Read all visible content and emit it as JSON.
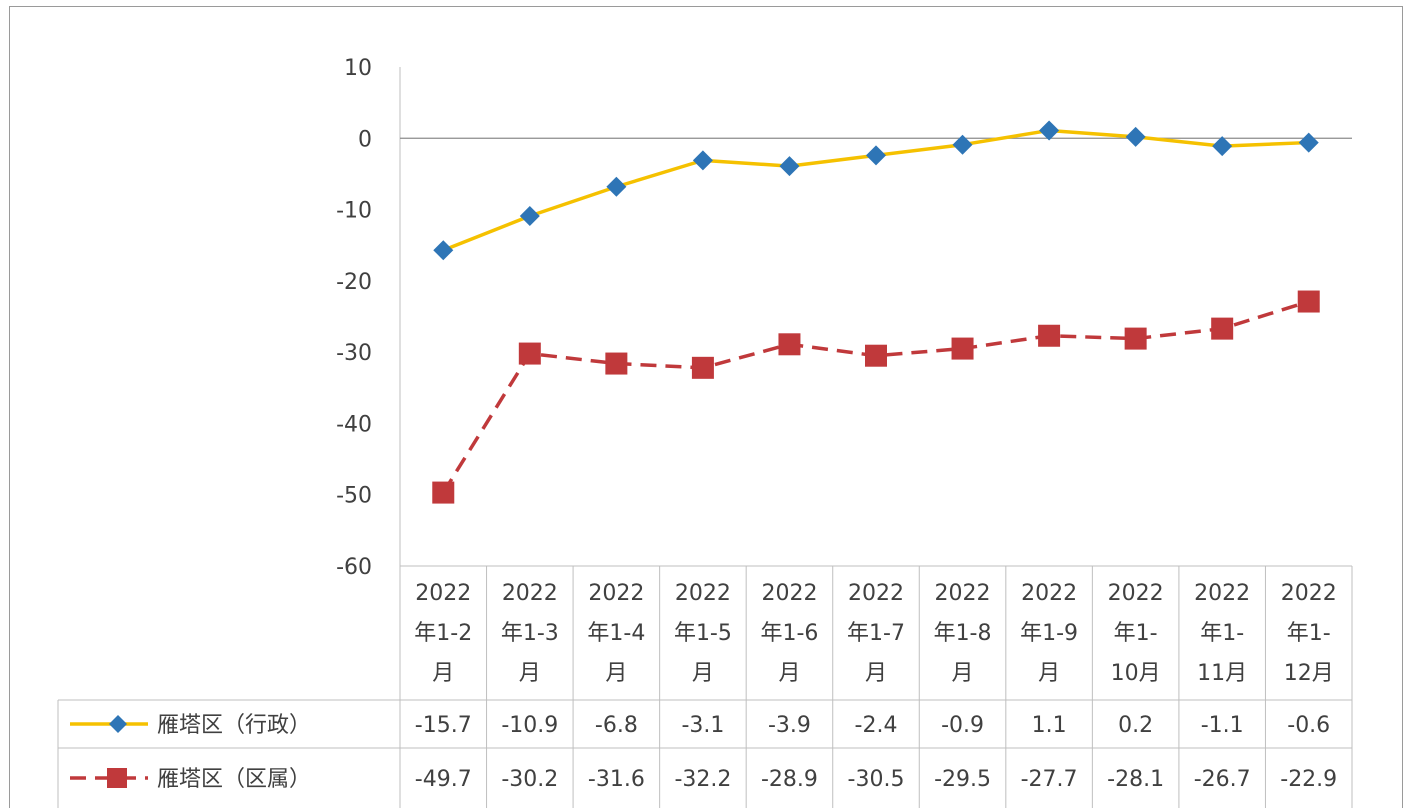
{
  "chart_data": {
    "type": "line",
    "title": "",
    "xlabel": "",
    "ylabel": "",
    "ylim": [
      -60,
      10
    ],
    "yticks": [
      "10",
      "0",
      "-10",
      "-20",
      "-30",
      "-40",
      "-50",
      "-60"
    ],
    "categories": [
      [
        "2022",
        "年1-2",
        "月"
      ],
      [
        "2022",
        "年1-3",
        "月"
      ],
      [
        "2022",
        "年1-4",
        "月"
      ],
      [
        "2022",
        "年1-5",
        "月"
      ],
      [
        "2022",
        "年1-6",
        "月"
      ],
      [
        "2022",
        "年1-7",
        "月"
      ],
      [
        "2022",
        "年1-8",
        "月"
      ],
      [
        "2022",
        "年1-9",
        "月"
      ],
      [
        "2022",
        "年1-",
        "10月"
      ],
      [
        "2022",
        "年1-",
        "11月"
      ],
      [
        "2022",
        "年1-",
        "12月"
      ]
    ],
    "series": [
      {
        "name": "雁塔区（行政）",
        "color": "#f5c100",
        "marker_color": "#2e75b6",
        "marker": "diamond",
        "line_style": "solid",
        "values": [
          -15.7,
          -10.9,
          -6.8,
          -3.1,
          -3.9,
          -2.4,
          -0.9,
          1.1,
          0.2,
          -1.1,
          -0.6
        ],
        "labels": [
          "-15.7",
          "-10.9",
          "-6.8",
          "-3.1",
          "-3.9",
          "-2.4",
          "-0.9",
          "1.1",
          "0.2",
          "-1.1",
          "-0.6"
        ]
      },
      {
        "name": "雁塔区（区属）",
        "color": "#c0393b",
        "marker_color": "#c0393b",
        "marker": "square",
        "line_style": "dashed",
        "values": [
          -49.7,
          -30.2,
          -31.6,
          -32.2,
          -28.9,
          -30.5,
          -29.5,
          -27.7,
          -28.1,
          -26.7,
          -22.9
        ],
        "labels": [
          "-49.7",
          "-30.2",
          "-31.6",
          "-32.2",
          "-28.9",
          "-30.5",
          "-29.5",
          "-27.7",
          "-28.1",
          "-26.7",
          "-22.9"
        ]
      }
    ],
    "grid": false,
    "legend": "data-table"
  }
}
